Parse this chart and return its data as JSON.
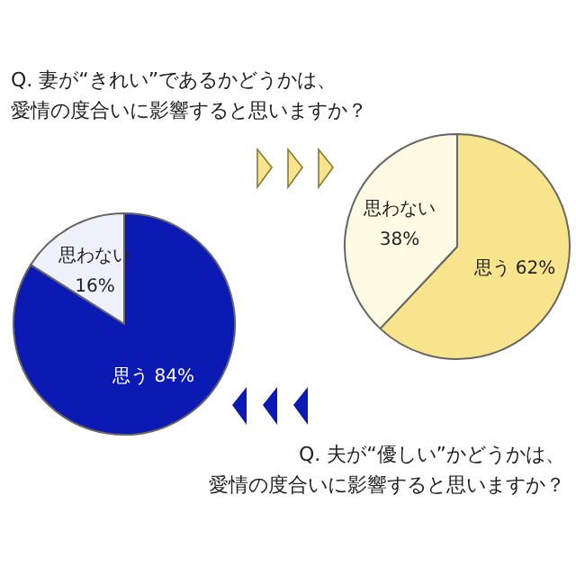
{
  "chart_data": [
    {
      "type": "pie",
      "title": "Q. 妻が“きれい”であるかどうかは、愛情の度合いに影響すると思いますか？",
      "categories": [
        "思う",
        "思わない"
      ],
      "values": [
        62,
        38
      ],
      "value_labels": [
        "62%",
        "38%"
      ],
      "colors": [
        "#f8e48c",
        "#fefbe4"
      ],
      "legend": false
    },
    {
      "type": "pie",
      "title": "Q. 夫が“優しい”かどうかは、愛情の度合いに影響すると思いますか？",
      "categories": [
        "思う",
        "思わない"
      ],
      "values": [
        84,
        16
      ],
      "value_labels": [
        "84%",
        "16%"
      ],
      "colors": [
        "#0c1ab4",
        "#eef0fa"
      ],
      "legend": false
    }
  ]
}
